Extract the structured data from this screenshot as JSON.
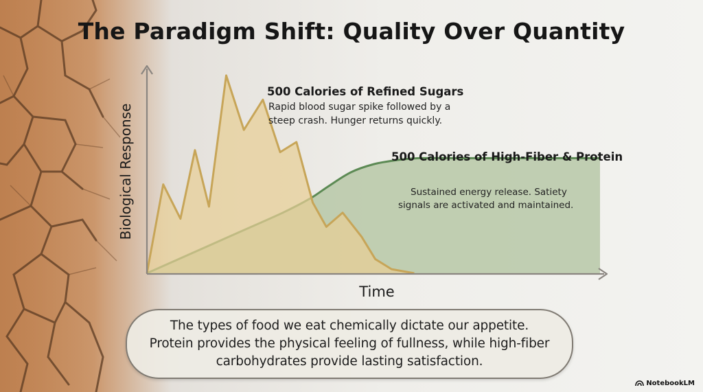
{
  "title": "The Paradigm Shift: Quality Over Quantity",
  "brand": {
    "name": "NotebookLM",
    "icon": "notebooklm-logo-icon"
  },
  "summary": {
    "lines": [
      "The types of food we eat chemically dictate our appetite.",
      "Protein provides the physical feeling of fullness, while high-fiber",
      "carbohydrates provide lasting satisfaction."
    ]
  },
  "colors": {
    "sugar_fill": "#e8cf96",
    "sugar_stroke": "#c7a558",
    "fiber_fill": "#b7c8a7",
    "fiber_stroke": "#5c8a54",
    "axis": "#8a8580",
    "earth": "#c98d5c"
  },
  "chart_data": {
    "type": "area",
    "xlabel": "Time",
    "ylabel": "Biological Response",
    "xlim": [
      0,
      100
    ],
    "ylim": [
      0,
      100
    ],
    "axis_ticks": false,
    "grid": false,
    "series": [
      {
        "name": "500 Calories of Refined Sugars",
        "description_lines": [
          "Rapid blood sugar spike followed by a",
          "steep crash. Hunger returns quickly."
        ],
        "color": "#e8cf96",
        "x": [
          0,
          3.6,
          7.4,
          10.6,
          13.7,
          17.5,
          21.4,
          25.6,
          29.4,
          33.0,
          36.6,
          39.6,
          43.2,
          47.4,
          50.4,
          54.0,
          59.0
        ],
        "y": [
          0,
          44,
          27,
          61,
          33,
          98,
          71,
          86,
          60,
          65,
          35,
          23,
          30,
          18,
          7,
          2,
          0
        ]
      },
      {
        "name": "500 Calories of High-Fiber & Protein",
        "description_lines": [
          "Sustained energy release. Satiety",
          "signals are activated and maintained."
        ],
        "color": "#b7c8a7",
        "x": [
          0,
          10,
          20,
          30,
          36,
          40,
          45,
          50,
          55,
          60,
          70,
          80,
          90,
          100
        ],
        "y": [
          0,
          10,
          20,
          30,
          37,
          43,
          50,
          54,
          56,
          57,
          57,
          57,
          57,
          57
        ]
      }
    ]
  }
}
